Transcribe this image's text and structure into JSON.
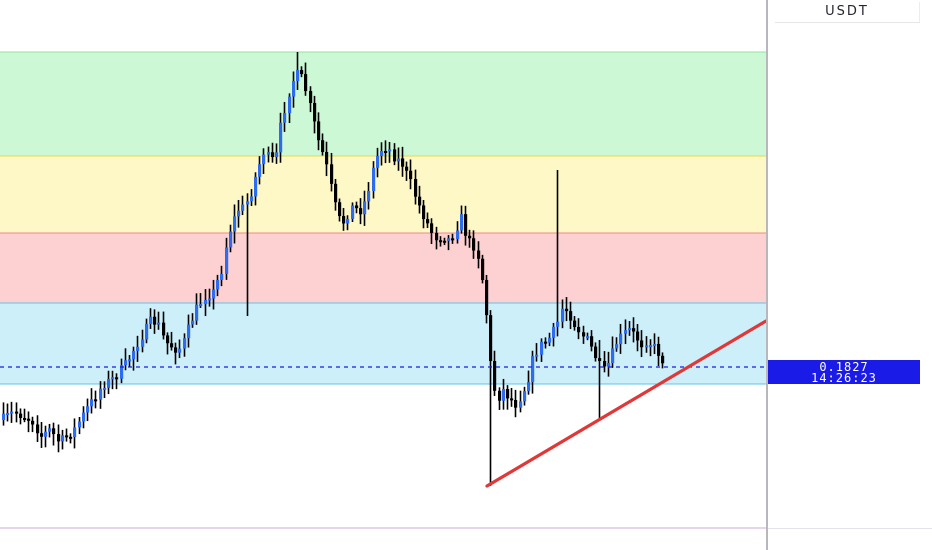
{
  "chart_data": {
    "type": "candlestick",
    "quote_currency": "USDT",
    "current_price": "0.1827",
    "countdown": "14:26:23",
    "colors": {
      "up": "#2d6bf0",
      "down": "#000000",
      "zone_green": "#ccf8d6",
      "zone_yellow": "#fdf8c6",
      "zone_red": "#fdd0d2",
      "zone_blue": "#cdeffa",
      "trendline": "#e03838",
      "price_line": "#1b1be8",
      "price_tag": "#1b1be8"
    }
  }
}
